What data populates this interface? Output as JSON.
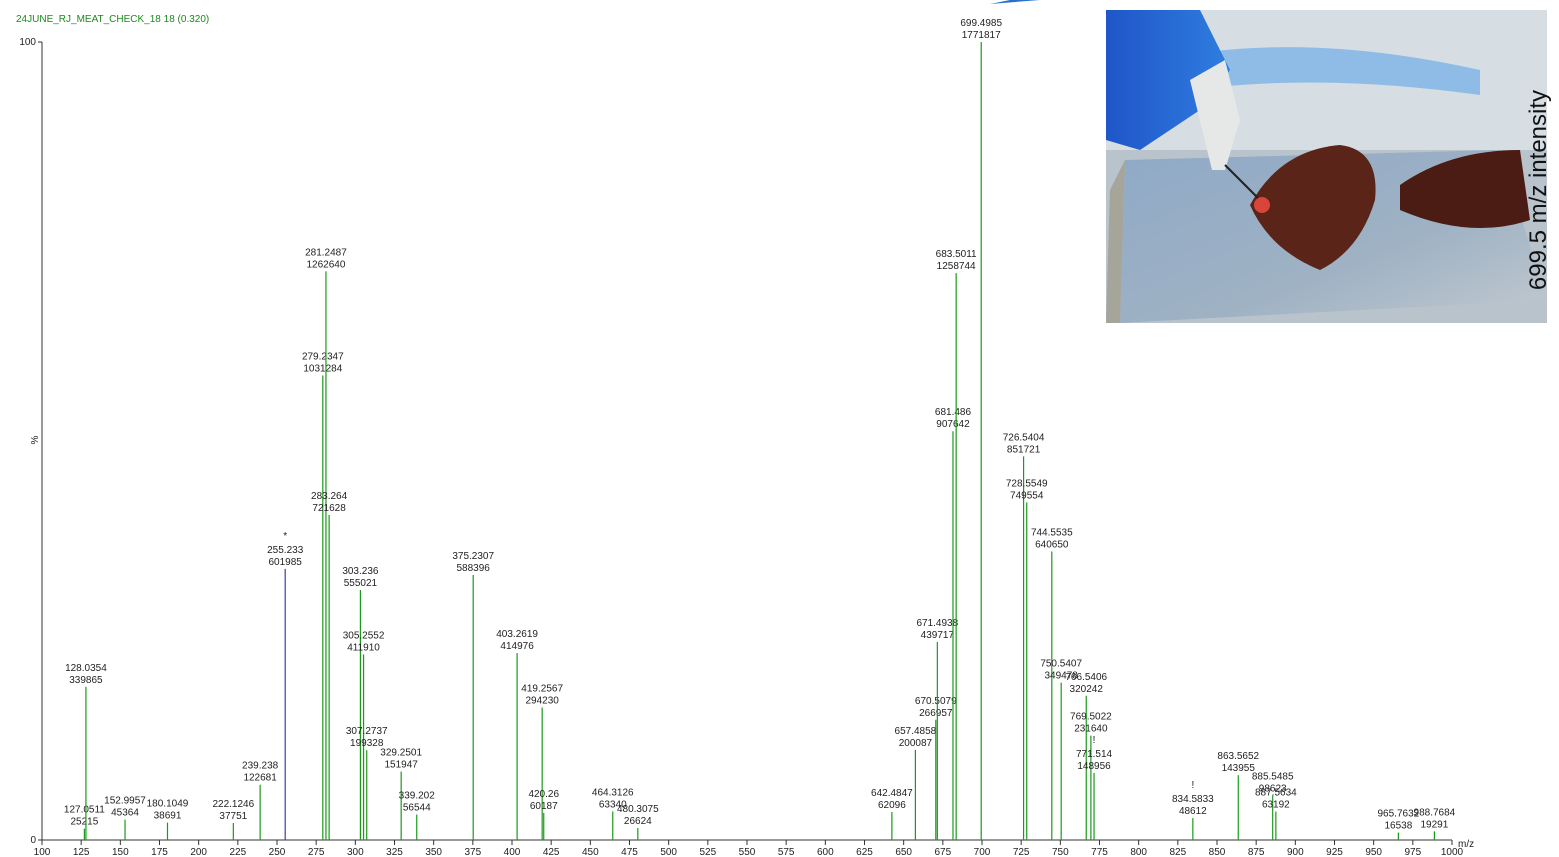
{
  "chart_data": {
    "type": "spectrum",
    "title": "24JUNE_RJ_MEAT_CHECK_18 18 (0.320)",
    "ylabel": "%",
    "xlabel": "m/z",
    "inset_label": "699.5 m/z intensity",
    "color": "#1a9a1a",
    "xlim": [
      100,
      1000
    ],
    "xticks": [
      100,
      125,
      150,
      175,
      200,
      225,
      250,
      275,
      300,
      325,
      350,
      375,
      400,
      425,
      450,
      475,
      500,
      525,
      550,
      575,
      600,
      625,
      650,
      675,
      700,
      725,
      750,
      775,
      800,
      825,
      850,
      875,
      900,
      925,
      950,
      975,
      1000
    ],
    "ylim": [
      0,
      1771817
    ],
    "yticks": [
      0,
      {
        "value": 1771817,
        "label": "100"
      }
    ],
    "peaks": [
      {
        "mz": 127.0511,
        "intensity": 25215
      },
      {
        "mz": 128.0354,
        "intensity": 339865
      },
      {
        "mz": 152.9957,
        "intensity": 45364
      },
      {
        "mz": 180.1049,
        "intensity": 38691
      },
      {
        "mz": 222.1246,
        "intensity": 37751
      },
      {
        "mz": 239.238,
        "intensity": 122681
      },
      {
        "mz": 255.233,
        "intensity": 601985,
        "flag": "*",
        "color": "#3b3bb0"
      },
      {
        "mz": 279.2347,
        "intensity": 1031284
      },
      {
        "mz": 281.2487,
        "intensity": 1262640
      },
      {
        "mz": 283.264,
        "intensity": 721628
      },
      {
        "mz": 303.236,
        "intensity": 555021
      },
      {
        "mz": 305.2552,
        "intensity": 411910
      },
      {
        "mz": 307.2737,
        "intensity": 199328
      },
      {
        "mz": 329.2501,
        "intensity": 151947
      },
      {
        "mz": 339.202,
        "intensity": 56544
      },
      {
        "mz": 375.2307,
        "intensity": 588396
      },
      {
        "mz": 403.2619,
        "intensity": 414976
      },
      {
        "mz": 419.2567,
        "intensity": 294230
      },
      {
        "mz": 420.26,
        "intensity": 60187
      },
      {
        "mz": 464.3126,
        "intensity": 63340
      },
      {
        "mz": 480.3075,
        "intensity": 26624
      },
      {
        "mz": 642.4847,
        "intensity": 62096
      },
      {
        "mz": 657.4858,
        "intensity": 200087
      },
      {
        "mz": 670.5079,
        "intensity": 266957
      },
      {
        "mz": 671.4938,
        "intensity": 439717
      },
      {
        "mz": 681.486,
        "intensity": 907642
      },
      {
        "mz": 683.5011,
        "intensity": 1258744
      },
      {
        "mz": 699.4985,
        "intensity": 1771817
      },
      {
        "mz": 726.5404,
        "intensity": 851721
      },
      {
        "mz": 728.5549,
        "intensity": 749554
      },
      {
        "mz": 744.5535,
        "intensity": 640650
      },
      {
        "mz": 750.5407,
        "intensity": 349478
      },
      {
        "mz": 766.5406,
        "intensity": 320242
      },
      {
        "mz": 769.5022,
        "intensity": 231640
      },
      {
        "mz": 771.514,
        "intensity": 148956,
        "flag": "!"
      },
      {
        "mz": 834.5833,
        "intensity": 48612,
        "flag": "!"
      },
      {
        "mz": 863.5652,
        "intensity": 143955
      },
      {
        "mz": 885.5485,
        "intensity": 98623
      },
      {
        "mz": 887.5634,
        "intensity": 63192
      },
      {
        "mz": 965.7632,
        "intensity": 16538
      },
      {
        "mz": 988.7684,
        "intensity": 19291
      }
    ]
  }
}
